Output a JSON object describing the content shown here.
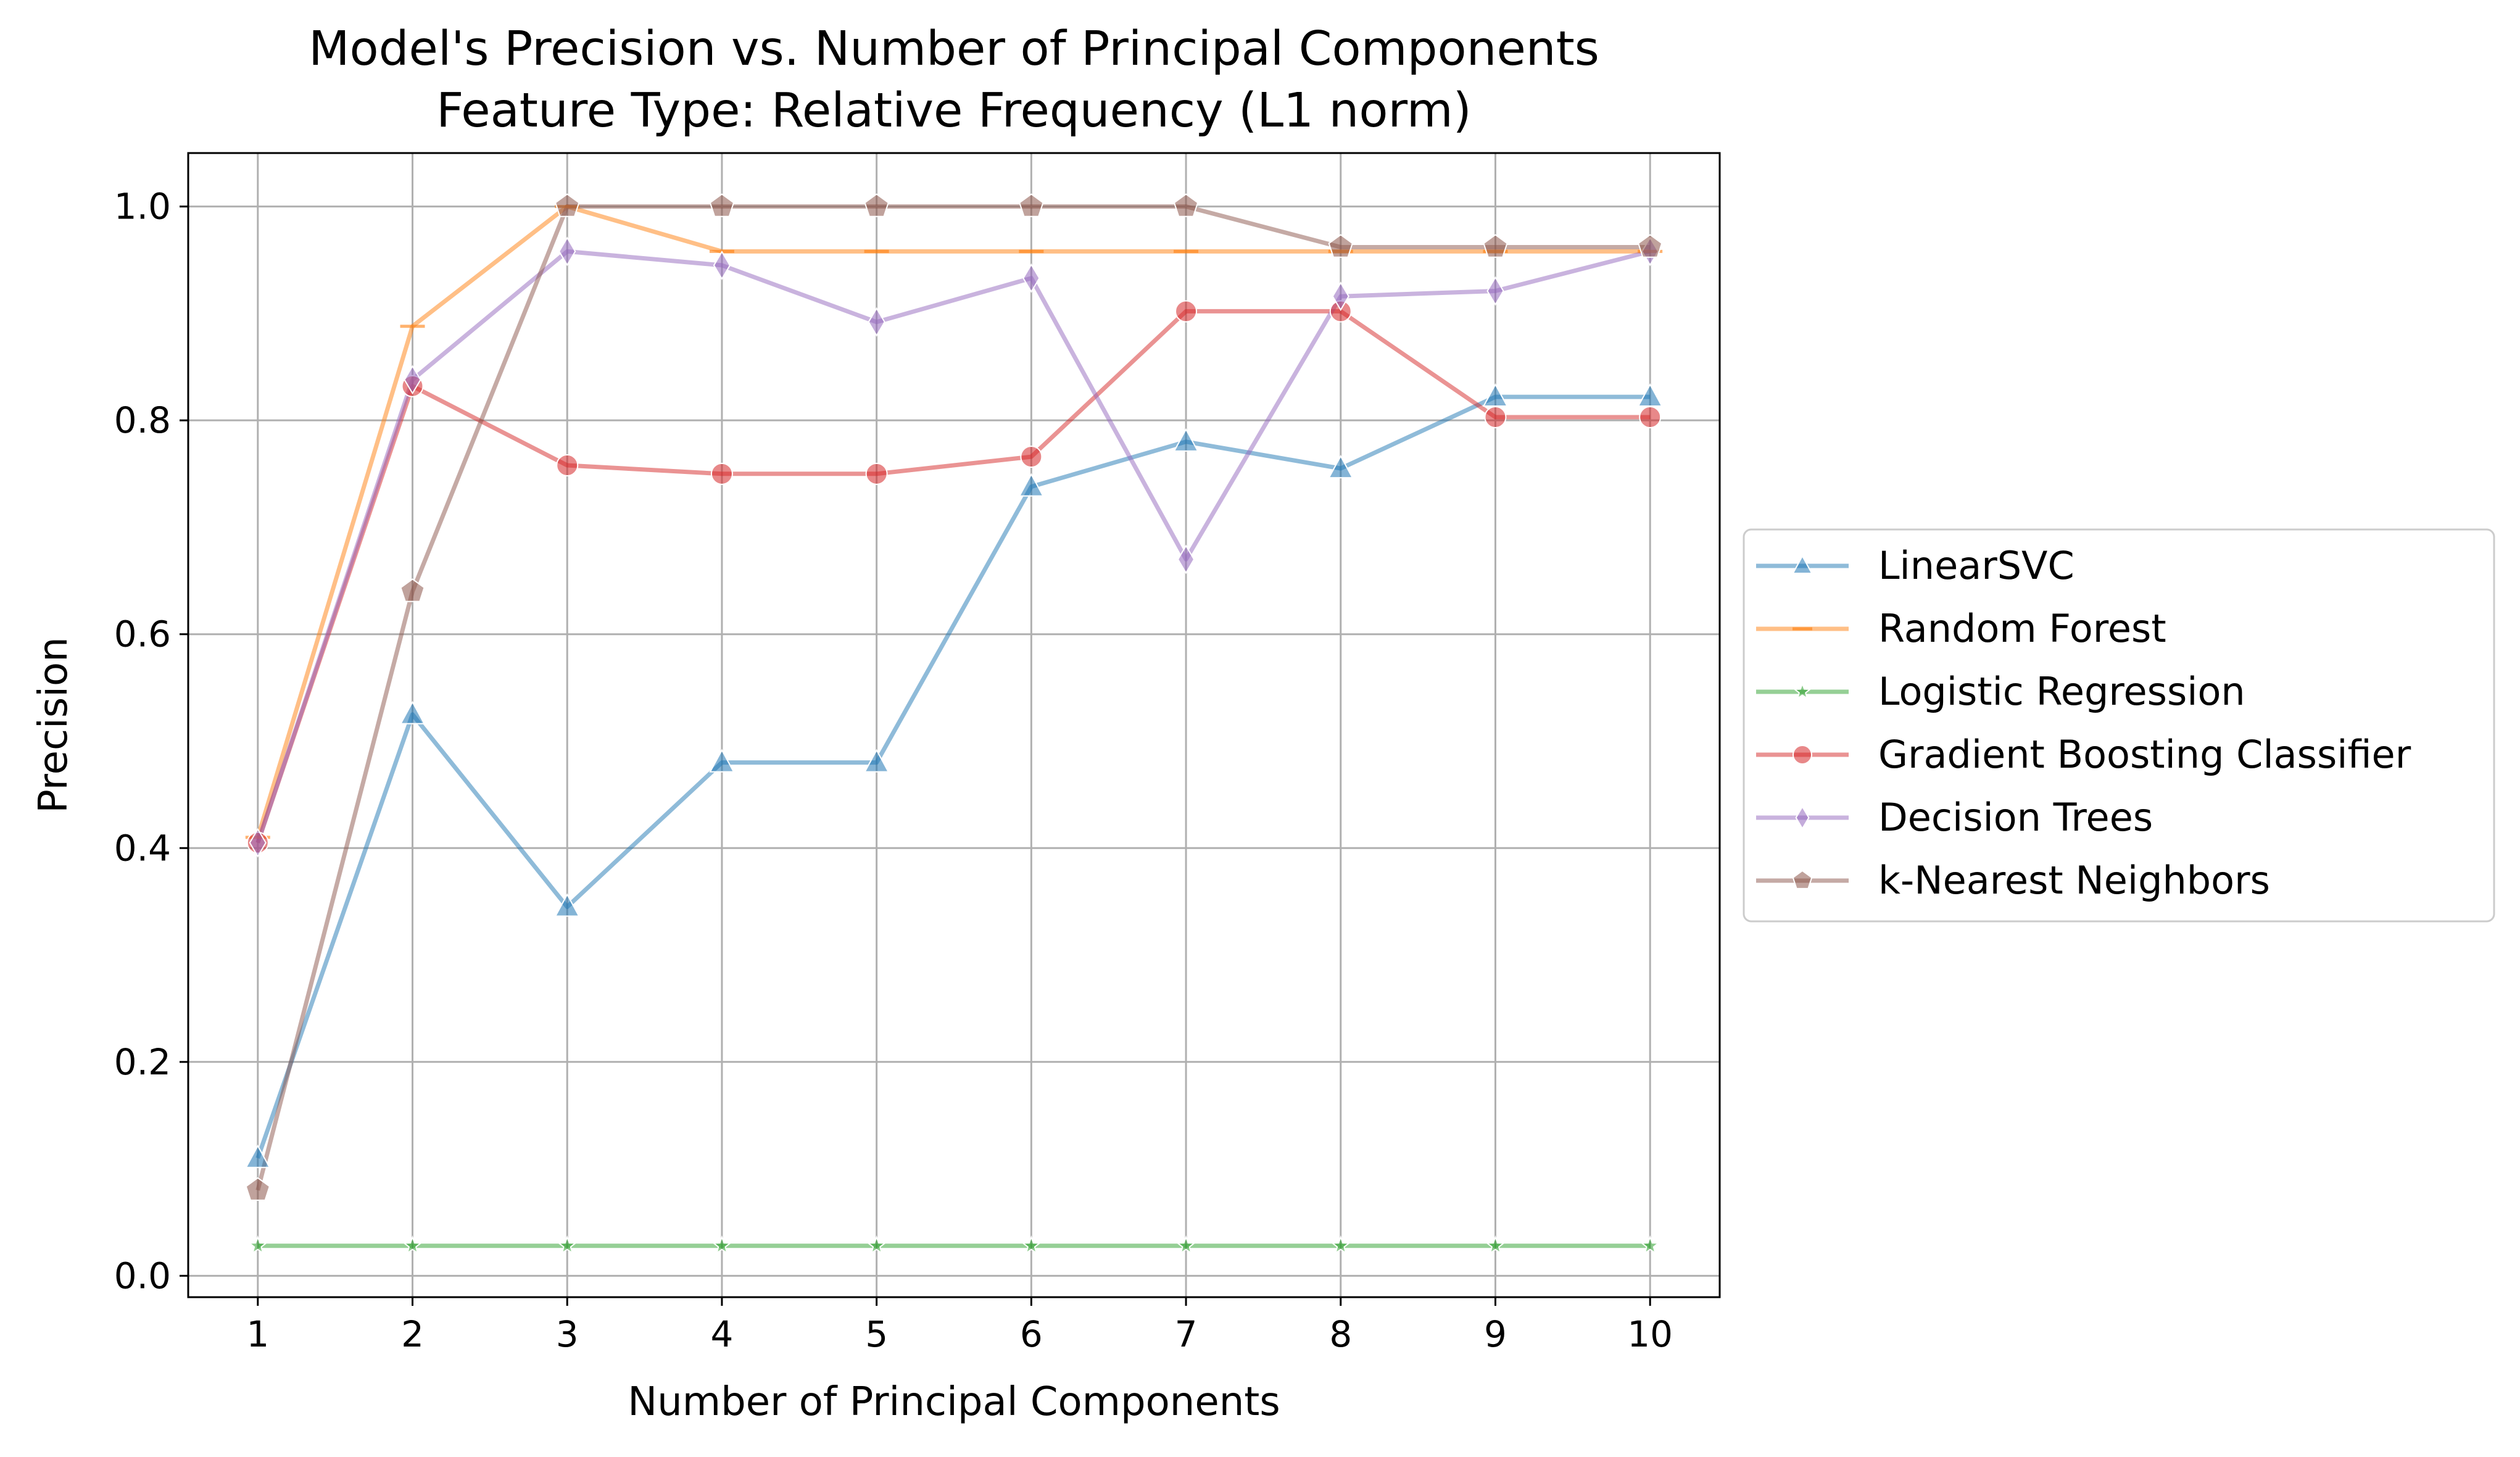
{
  "chart_data": {
    "type": "line",
    "title": "Model's Precision vs. Number of Principal Components",
    "subtitle": "Feature Type: Relative Frequency (L1 norm)",
    "xlabel": "Number of Principal Components",
    "ylabel": "Precision",
    "x": [
      1,
      2,
      3,
      4,
      5,
      6,
      7,
      8,
      9,
      10
    ],
    "x_ticks": [
      "1",
      "2",
      "3",
      "4",
      "5",
      "6",
      "7",
      "8",
      "9",
      "10"
    ],
    "y_ticks": [
      "0.0",
      "0.2",
      "0.4",
      "0.6",
      "0.8",
      "1.0"
    ],
    "xlim": [
      0.55,
      10.45
    ],
    "ylim": [
      -0.02,
      1.05
    ],
    "grid": true,
    "legend_position": "outside-right",
    "series": [
      {
        "name": "LinearSVC",
        "color": "#1f77b4",
        "marker": "triangle-up",
        "values": [
          0.11,
          0.525,
          0.345,
          0.48,
          0.48,
          0.738,
          0.78,
          0.755,
          0.822,
          0.822
        ]
      },
      {
        "name": "Random Forest",
        "color": "#ff7f0e",
        "marker": "hline",
        "values": [
          0.41,
          0.888,
          1.0,
          0.958,
          0.958,
          0.958,
          0.958,
          0.958,
          0.958,
          0.958
        ]
      },
      {
        "name": "Logistic Regression",
        "color": "#2ca02c",
        "marker": "star",
        "values": [
          0.028,
          0.028,
          0.028,
          0.028,
          0.028,
          0.028,
          0.028,
          0.028,
          0.028,
          0.028
        ]
      },
      {
        "name": "Gradient Boosting Classifier",
        "color": "#d62728",
        "marker": "circle",
        "values": [
          0.405,
          0.832,
          0.758,
          0.75,
          0.75,
          0.766,
          0.902,
          0.902,
          0.803,
          0.803
        ]
      },
      {
        "name": "Decision Trees",
        "color": "#9467bd",
        "marker": "thin-diamond",
        "values": [
          0.405,
          0.838,
          0.958,
          0.945,
          0.892,
          0.933,
          0.67,
          0.916,
          0.921,
          0.958
        ]
      },
      {
        "name": "k-Nearest Neighbors",
        "color": "#8c564b",
        "marker": "pentagon",
        "values": [
          0.08,
          0.64,
          1.0,
          1.0,
          1.0,
          1.0,
          1.0,
          0.962,
          0.962,
          0.962
        ]
      }
    ]
  }
}
